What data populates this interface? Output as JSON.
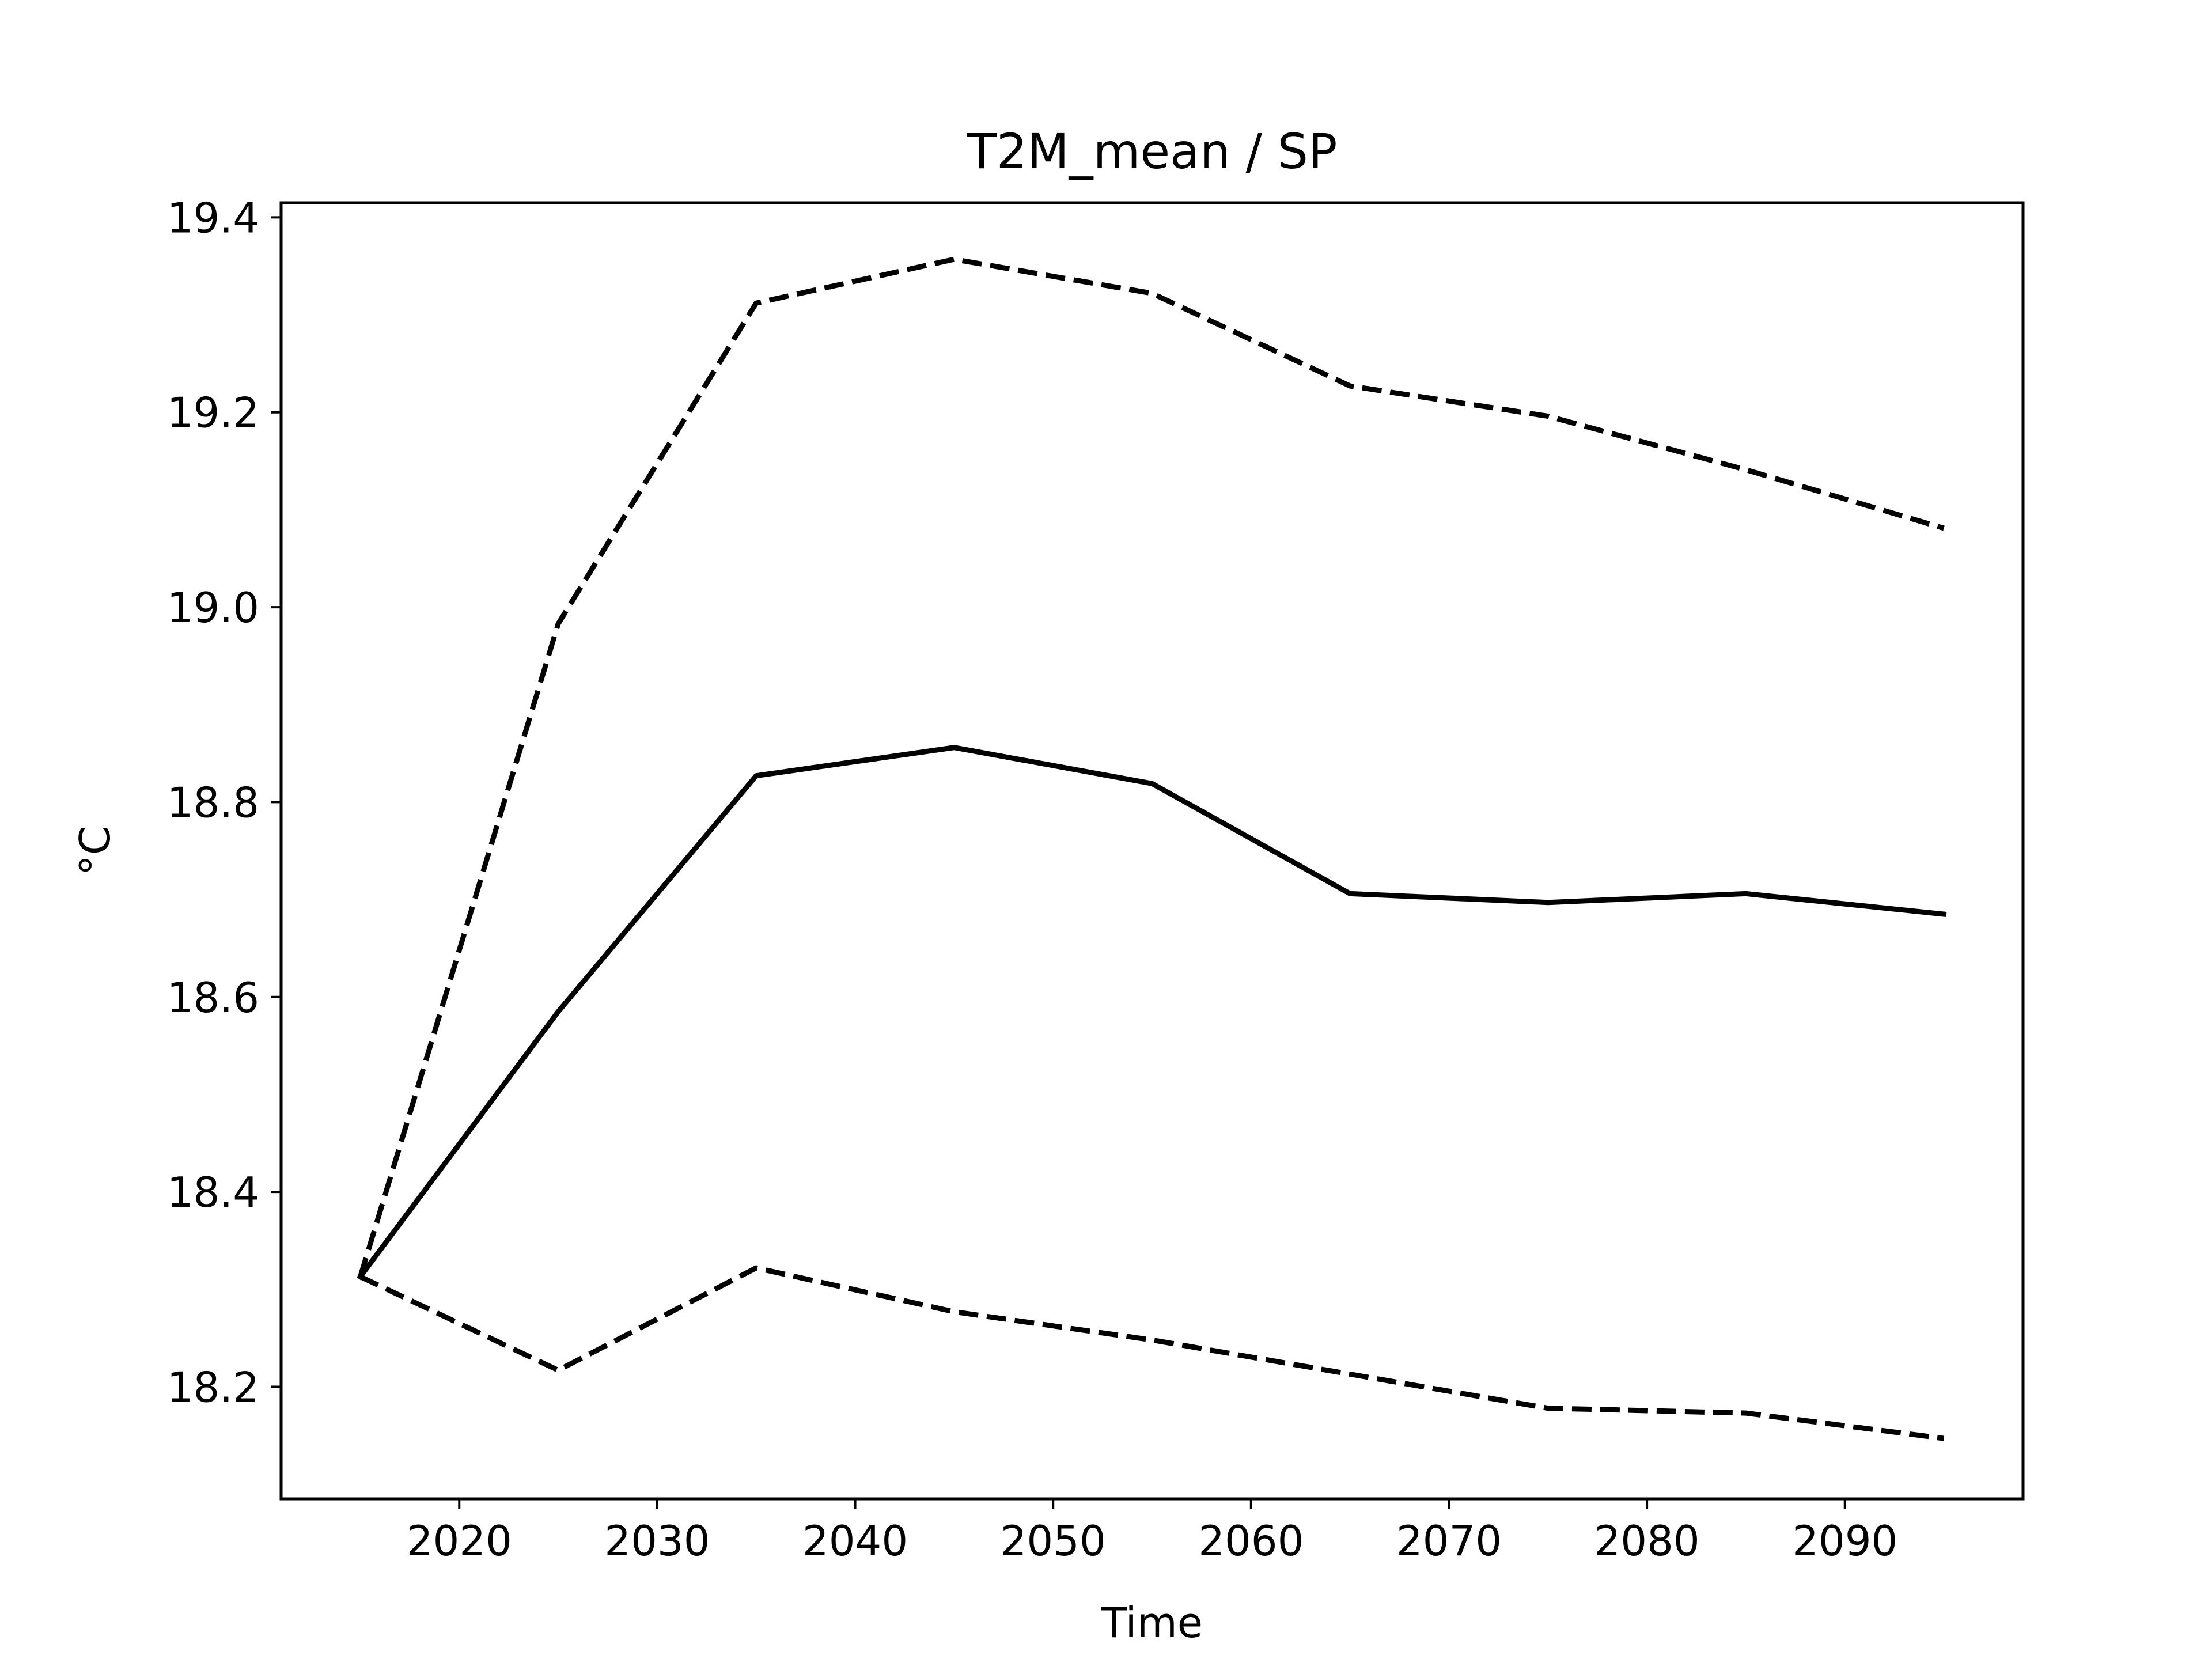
{
  "chart_data": {
    "type": "line",
    "title": "T2M_mean / SP",
    "xlabel": "Time",
    "ylabel": "°C",
    "x": [
      2015,
      2025,
      2035,
      2045,
      2055,
      2065,
      2075,
      2085,
      2095
    ],
    "series": [
      {
        "style": "solid",
        "color": "#000000",
        "values": [
          18.313,
          18.585,
          18.827,
          18.856,
          18.819,
          18.706,
          18.697,
          18.706,
          18.685
        ]
      },
      {
        "style": "dashed",
        "color": "#000000",
        "values": [
          18.313,
          18.983,
          19.312,
          19.357,
          19.322,
          19.227,
          19.196,
          19.141,
          19.081
        ]
      },
      {
        "style": "dashed",
        "color": "#000000",
        "values": [
          18.313,
          18.217,
          18.322,
          18.277,
          18.248,
          18.213,
          18.178,
          18.173,
          18.147
        ]
      }
    ],
    "xlim": [
      2011.0,
      2099.0
    ],
    "ylim": [
      18.085,
      19.415
    ],
    "xticks": [
      2020,
      2030,
      2040,
      2050,
      2060,
      2070,
      2080,
      2090
    ],
    "xtick_labels": [
      "2020",
      "2030",
      "2040",
      "2050",
      "2060",
      "2070",
      "2080",
      "2090"
    ],
    "yticks": [
      18.2,
      18.4,
      18.6,
      18.8,
      19.0,
      19.2,
      19.4
    ],
    "ytick_labels": [
      "18.2",
      "18.4",
      "18.6",
      "18.8",
      "19.0",
      "19.2",
      "19.4"
    ],
    "grid": false,
    "legend": false
  }
}
